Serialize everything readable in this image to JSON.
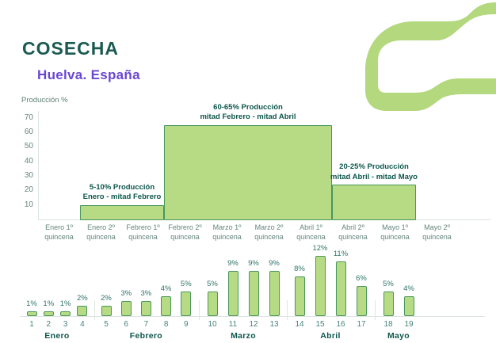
{
  "header": {
    "title": "COSECHA",
    "subtitle": "Huelva. España"
  },
  "colors": {
    "brand_green": "#b3d87d",
    "fill_green": "#b7db85",
    "border_green": "#4a965c",
    "accent_teal": "#0d564c",
    "accent_purple": "#6a47d1",
    "axis_text": "#64857d"
  },
  "icons": {
    "brand_wave_logo": "stylized-green-wave-c-mark"
  },
  "chart_data": [
    {
      "type": "area",
      "subtype": "step",
      "ylabel": "Producción %",
      "ylim": [
        0,
        74
      ],
      "yticks": [
        70,
        60,
        50,
        40,
        30,
        20,
        10
      ],
      "categories": [
        "Enero 1º",
        "Enero 2º",
        "Febrero 1º",
        "Febrero 2º",
        "Marzo 1º",
        "Marzo 2º",
        "Abril 1º",
        "Abril 2º",
        "Mayo 1º",
        "Mayo 2º"
      ],
      "category_line2": "quincena",
      "values": [
        0,
        10,
        10,
        65,
        65,
        65,
        65,
        24,
        24,
        0
      ],
      "annotations": [
        {
          "lines": [
            "5-10% Producción",
            "Enero - mitad Febrero"
          ],
          "at_boundary": 2
        },
        {
          "lines": [
            "60-65% Producción",
            "mitad Febrero - mitad Abril"
          ],
          "at_boundary": 5
        },
        {
          "lines": [
            "20-25% Producción",
            "mitad Abril - mitad Mayo"
          ],
          "at_boundary": 8
        }
      ],
      "grid": false,
      "legend": "none"
    },
    {
      "type": "bar",
      "unit": "%",
      "x": [
        1,
        2,
        3,
        4,
        5,
        6,
        7,
        8,
        9,
        10,
        11,
        12,
        13,
        14,
        15,
        16,
        17,
        18,
        19
      ],
      "values": [
        1,
        1,
        1,
        2,
        2,
        3,
        3,
        4,
        5,
        5,
        9,
        9,
        9,
        8,
        12,
        11,
        6,
        5,
        4
      ],
      "data_labels": [
        "1%",
        "1%",
        "1%",
        "2%",
        "2%",
        "3%",
        "3%",
        "4%",
        "5%",
        "5%",
        "9%",
        "9%",
        "9%",
        "8%",
        "12%",
        "11%",
        "6%",
        "5%",
        "4%"
      ],
      "month_groups": [
        {
          "label": "Enero",
          "from": 1,
          "to": 4
        },
        {
          "label": "Febrero",
          "from": 5,
          "to": 9
        },
        {
          "label": "Marzo",
          "from": 10,
          "to": 13
        },
        {
          "label": "Abril",
          "from": 14,
          "to": 17
        },
        {
          "label": "Mayo",
          "from": 18,
          "to": 19
        }
      ],
      "grid": false,
      "legend": "none"
    }
  ]
}
